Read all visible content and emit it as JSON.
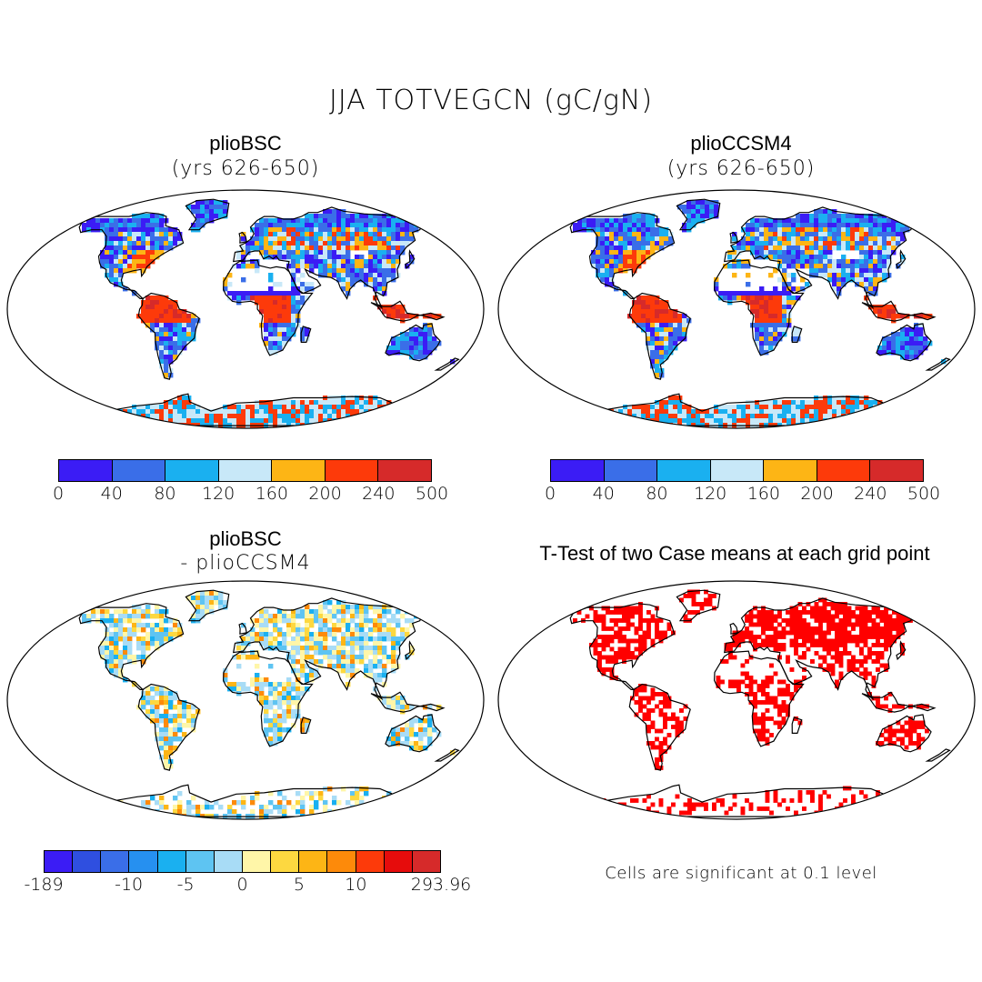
{
  "title": "JJA TOTVEGCN (gC/gN)",
  "panels": {
    "top_left": {
      "title": "plioBSC",
      "subtitle": "(yrs 626-650)"
    },
    "top_right": {
      "title": "plioCCSM4",
      "subtitle": "(yrs 626-650)"
    },
    "bottom_left": {
      "title": "plioBSC",
      "subtitle": "- plioCCSM4"
    },
    "bottom_right": {
      "title": "T-Test of two Case means at each grid point"
    }
  },
  "colorbar_abs": {
    "colors": [
      "#3b1cf5",
      "#3a6ee8",
      "#1ab0f0",
      "#c8e8f8",
      "#fdb515",
      "#fd3a0a",
      "#d62a2a"
    ],
    "ticks": [
      "0",
      "40",
      "80",
      "120",
      "160",
      "200",
      "240",
      "500"
    ]
  },
  "colorbar_diff": {
    "colors": [
      "#3b1cf5",
      "#2f4fe0",
      "#3a6ee8",
      "#2690f0",
      "#1ab0f0",
      "#5ec4f2",
      "#a8dcf6",
      "#fff6a8",
      "#fdd840",
      "#fdb515",
      "#fd8a0a",
      "#fd3a0a",
      "#e60c0c",
      "#d62a2a"
    ],
    "ticks": [
      "-189",
      "-10",
      "-5",
      "0",
      "5",
      "10",
      "293.96"
    ]
  },
  "note": "Cells are significant at 0.1 level"
}
